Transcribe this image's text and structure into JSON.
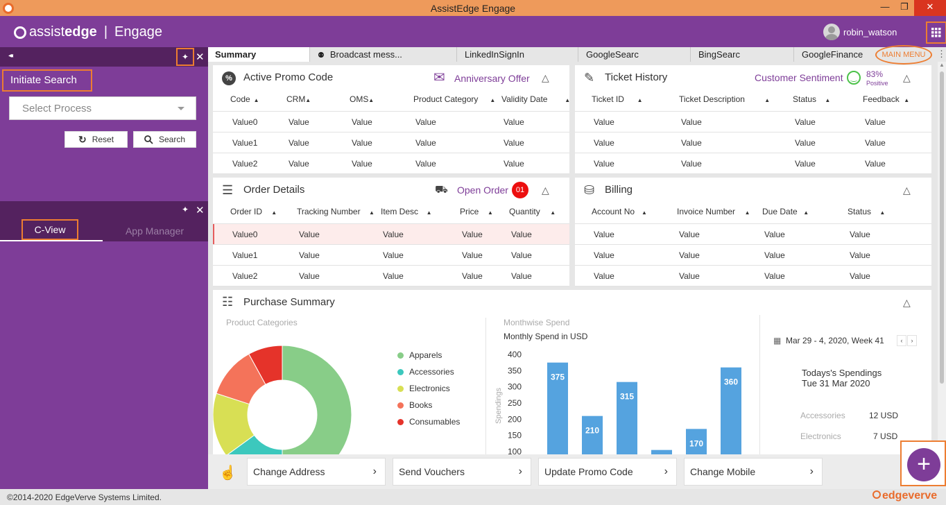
{
  "window": {
    "title": "AssistEdge Engage",
    "min": "—",
    "max": "❐",
    "close": "✕"
  },
  "app": {
    "logo_a": "assist",
    "logo_b": "edge",
    "logo_sep": "|",
    "logo_product": "Engage",
    "user": "robin_watson"
  },
  "left": {
    "collapse_icon": "◂◂",
    "initiate_search": "Initiate Search",
    "select_process": "Select Process",
    "reset": "Reset",
    "search": "Search",
    "tabs": [
      "C-View",
      "App Manager"
    ]
  },
  "tabs": [
    "Summary",
    "Broadcast mess...",
    "LinkedInSignIn",
    "GoogleSearc",
    "BingSearc",
    "GoogleFinance"
  ],
  "main_menu": "MAIN MENU",
  "promo": {
    "title": "Active Promo Code",
    "badge": "Anniversary Offer",
    "headers": [
      "Code",
      "CRM",
      "OMS",
      "Product Category",
      "Validity Date"
    ],
    "rows": [
      [
        "Value0",
        "Value",
        "Value",
        "Value",
        "Value"
      ],
      [
        "Value1",
        "Value",
        "Value",
        "Value",
        "Value"
      ],
      [
        "Value2",
        "Value",
        "Value",
        "Value",
        "Value"
      ]
    ]
  },
  "ticket": {
    "title": "Ticket History",
    "sentiment_label": "Customer Sentiment",
    "sentiment_pct": "83%",
    "sentiment_word": "Positive",
    "headers": [
      "Ticket ID",
      "Ticket Description",
      "Status",
      "Feedback"
    ],
    "rows": [
      [
        "Value",
        "Value",
        "Value",
        "Value"
      ],
      [
        "Value",
        "Value",
        "Value",
        "Value"
      ],
      [
        "Value",
        "Value",
        "Value",
        "Value"
      ]
    ]
  },
  "order": {
    "title": "Order Details",
    "badge": "Open Order",
    "count": "01",
    "headers": [
      "Order ID",
      "Tracking Number",
      "Item Desc",
      "Price",
      "Quantity"
    ],
    "rows": [
      [
        "Value0",
        "Value",
        "Value",
        "Value",
        "Value"
      ],
      [
        "Value1",
        "Value",
        "Value",
        "Value",
        "Value"
      ],
      [
        "Value2",
        "Value",
        "Value",
        "Value",
        "Value"
      ]
    ]
  },
  "billing": {
    "title": "Billing",
    "headers": [
      "Account No",
      "Invoice Number",
      "Due Date",
      "Status"
    ],
    "rows": [
      [
        "Value",
        "Value",
        "Value",
        "Value"
      ],
      [
        "Value",
        "Value",
        "Value",
        "Value"
      ],
      [
        "Value",
        "Value",
        "Value",
        "Value"
      ]
    ]
  },
  "purchase": {
    "title": "Purchase Summary",
    "cat_label": "Product Categories",
    "month_label": "Monthwise Spend",
    "week_label": "Mar 29 - 4, 2020, Week 41",
    "todays_label": "Todays's Spendings",
    "todays_date": "Tue 31 Mar 2020",
    "spend_items": [
      {
        "name": "Accessories",
        "value": "12 USD"
      },
      {
        "name": "Electronics",
        "value": "7 USD"
      }
    ]
  },
  "chart_data": [
    {
      "type": "pie",
      "categories": [
        "Apparels",
        "Accessories",
        "Electronics",
        "Books",
        "Consumables"
      ],
      "values": [
        50,
        15,
        15,
        12,
        8
      ],
      "colors": [
        "#88cd88",
        "#3cc8bd",
        "#d8df54",
        "#f4735a",
        "#e5332a"
      ],
      "title": "Product Categories",
      "legend": "right"
    },
    {
      "type": "bar",
      "title": "Monthly Spend in USD",
      "ylabel": "Spendings",
      "values": [
        375,
        210,
        315,
        105,
        170,
        360
      ],
      "data_labels": [
        "375",
        "210",
        "315",
        "",
        "170",
        "360"
      ],
      "yticks": [
        100,
        150,
        200,
        250,
        300,
        350,
        400
      ],
      "ylim": [
        100,
        400
      ],
      "color": "#55a3df"
    }
  ],
  "actions": [
    "Change Address",
    "Send Vouchers",
    "Update Promo Code",
    "Change Mobile"
  ],
  "footer": {
    "copyright": "©2014-2020 EdgeVerve Systems Limited.",
    "brand": "edgeverve"
  }
}
